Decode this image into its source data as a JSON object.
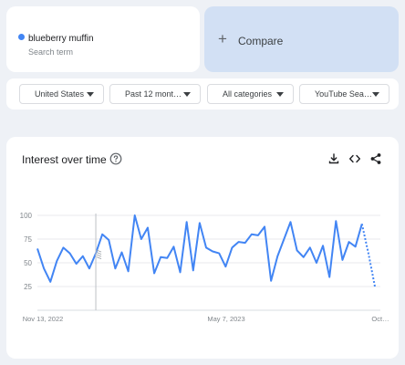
{
  "search_term": {
    "name": "blueberry muffin",
    "subtitle": "Search term",
    "color": "#4285f4"
  },
  "compare": {
    "icon": "plus-icon",
    "label": "Compare"
  },
  "filters": [
    {
      "label": "United States"
    },
    {
      "label": "Past 12 mont…"
    },
    {
      "label": "All categories"
    },
    {
      "label": "YouTube Sea…"
    }
  ],
  "interest_card": {
    "title": "Interest over time",
    "icons": [
      "help-icon",
      "download-icon",
      "embed-code-icon",
      "share-icon"
    ]
  },
  "chart_data": {
    "type": "line",
    "title": "Interest over time",
    "xlabel": "",
    "ylabel": "",
    "ylim": [
      0,
      100
    ],
    "y_ticks": [
      100,
      75,
      50,
      25
    ],
    "x_tick_labels": [
      "Nov 13, 2022",
      "May 7, 2023",
      "Oct…"
    ],
    "grid": true,
    "series": [
      {
        "color": "#4285f4",
        "values": [
          65,
          44,
          30,
          52,
          66,
          60,
          49,
          57,
          44,
          60,
          80,
          74,
          44,
          61,
          41,
          100,
          75,
          87,
          39,
          56,
          55,
          67,
          40,
          93,
          42,
          92,
          66,
          62,
          60,
          46,
          66,
          72,
          71,
          80,
          79,
          88,
          31,
          57,
          75,
          93,
          63,
          56,
          66,
          50,
          68,
          35,
          94,
          53,
          72,
          67,
          91,
          60,
          25
        ],
        "partial_last_points": 2
      }
    ]
  }
}
